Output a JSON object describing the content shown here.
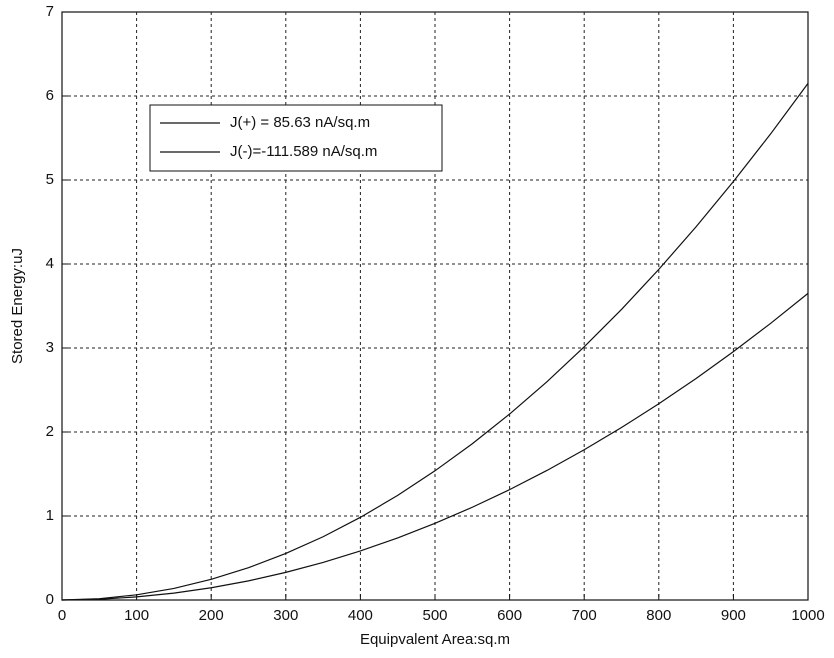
{
  "chart_data": {
    "type": "line",
    "x_label": "Equipvalent Area:sq.m",
    "y_label": "Stored Energy:uJ",
    "x": [
      0,
      50,
      100,
      150,
      200,
      250,
      300,
      350,
      400,
      450,
      500,
      550,
      600,
      650,
      700,
      750,
      800,
      850,
      900,
      950,
      1000
    ],
    "series": [
      {
        "name": "J(+) = 85.63 nA/sq.m",
        "color": "#111111",
        "values": [
          0,
          0.015,
          0.062,
          0.138,
          0.246,
          0.384,
          0.554,
          0.753,
          0.984,
          1.245,
          1.538,
          1.86,
          2.214,
          2.598,
          3.014,
          3.459,
          3.936,
          4.443,
          4.982,
          5.55,
          6.15
        ]
      },
      {
        "name": "J(-)=-111.589 nA/sq.m",
        "color": "#111111",
        "values": [
          0,
          0.009,
          0.037,
          0.082,
          0.146,
          0.228,
          0.329,
          0.447,
          0.584,
          0.739,
          0.913,
          1.104,
          1.314,
          1.542,
          1.789,
          2.053,
          2.336,
          2.637,
          2.957,
          3.294,
          3.65
        ]
      }
    ],
    "xlim": [
      0,
      1000
    ],
    "xticks": [
      0,
      100,
      200,
      300,
      400,
      500,
      600,
      700,
      800,
      900,
      1000
    ],
    "ylim": [
      0,
      7
    ],
    "yticks": [
      0,
      1,
      2,
      3,
      4,
      5,
      6,
      7
    ],
    "grid": true,
    "legend": "upper left"
  }
}
